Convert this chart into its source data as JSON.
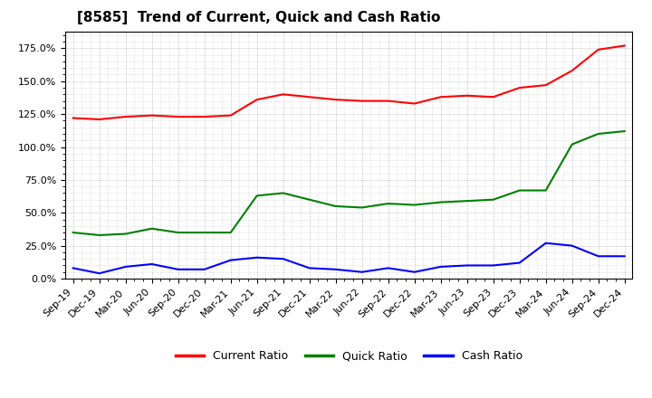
{
  "title": "[8585]  Trend of Current, Quick and Cash Ratio",
  "x_labels": [
    "Sep-19",
    "Dec-19",
    "Mar-20",
    "Jun-20",
    "Sep-20",
    "Dec-20",
    "Mar-21",
    "Jun-21",
    "Sep-21",
    "Dec-21",
    "Mar-22",
    "Jun-22",
    "Sep-22",
    "Dec-22",
    "Mar-23",
    "Jun-23",
    "Sep-23",
    "Dec-23",
    "Mar-24",
    "Jun-24",
    "Sep-24",
    "Dec-24"
  ],
  "current_ratio": [
    1.22,
    1.21,
    1.23,
    1.24,
    1.23,
    1.23,
    1.24,
    1.36,
    1.4,
    1.38,
    1.36,
    1.35,
    1.35,
    1.33,
    1.38,
    1.39,
    1.38,
    1.45,
    1.47,
    1.58,
    1.74,
    1.77
  ],
  "quick_ratio": [
    0.35,
    0.33,
    0.34,
    0.38,
    0.35,
    0.35,
    0.35,
    0.63,
    0.65,
    0.6,
    0.55,
    0.54,
    0.57,
    0.56,
    0.58,
    0.59,
    0.6,
    0.67,
    0.67,
    1.02,
    1.1,
    1.12
  ],
  "cash_ratio": [
    0.08,
    0.04,
    0.09,
    0.11,
    0.07,
    0.07,
    0.14,
    0.16,
    0.15,
    0.08,
    0.07,
    0.05,
    0.08,
    0.05,
    0.09,
    0.1,
    0.1,
    0.12,
    0.27,
    0.25,
    0.17,
    0.17
  ],
  "current_color": "#FF0000",
  "quick_color": "#008000",
  "cash_color": "#0000FF",
  "ylim": [
    0.0,
    1.875
  ],
  "yticks": [
    0.0,
    0.25,
    0.5,
    0.75,
    1.0,
    1.25,
    1.5,
    1.75
  ],
  "ytick_labels": [
    "0.0%",
    "25.0%",
    "50.0%",
    "75.0%",
    "100.0%",
    "125.0%",
    "150.0%",
    "175.0%"
  ],
  "background_color": "#FFFFFF",
  "grid_color": "#999999",
  "legend_labels": [
    "Current Ratio",
    "Quick Ratio",
    "Cash Ratio"
  ],
  "title_fontsize": 11,
  "axis_fontsize": 8,
  "legend_fontsize": 9,
  "line_width": 1.5
}
